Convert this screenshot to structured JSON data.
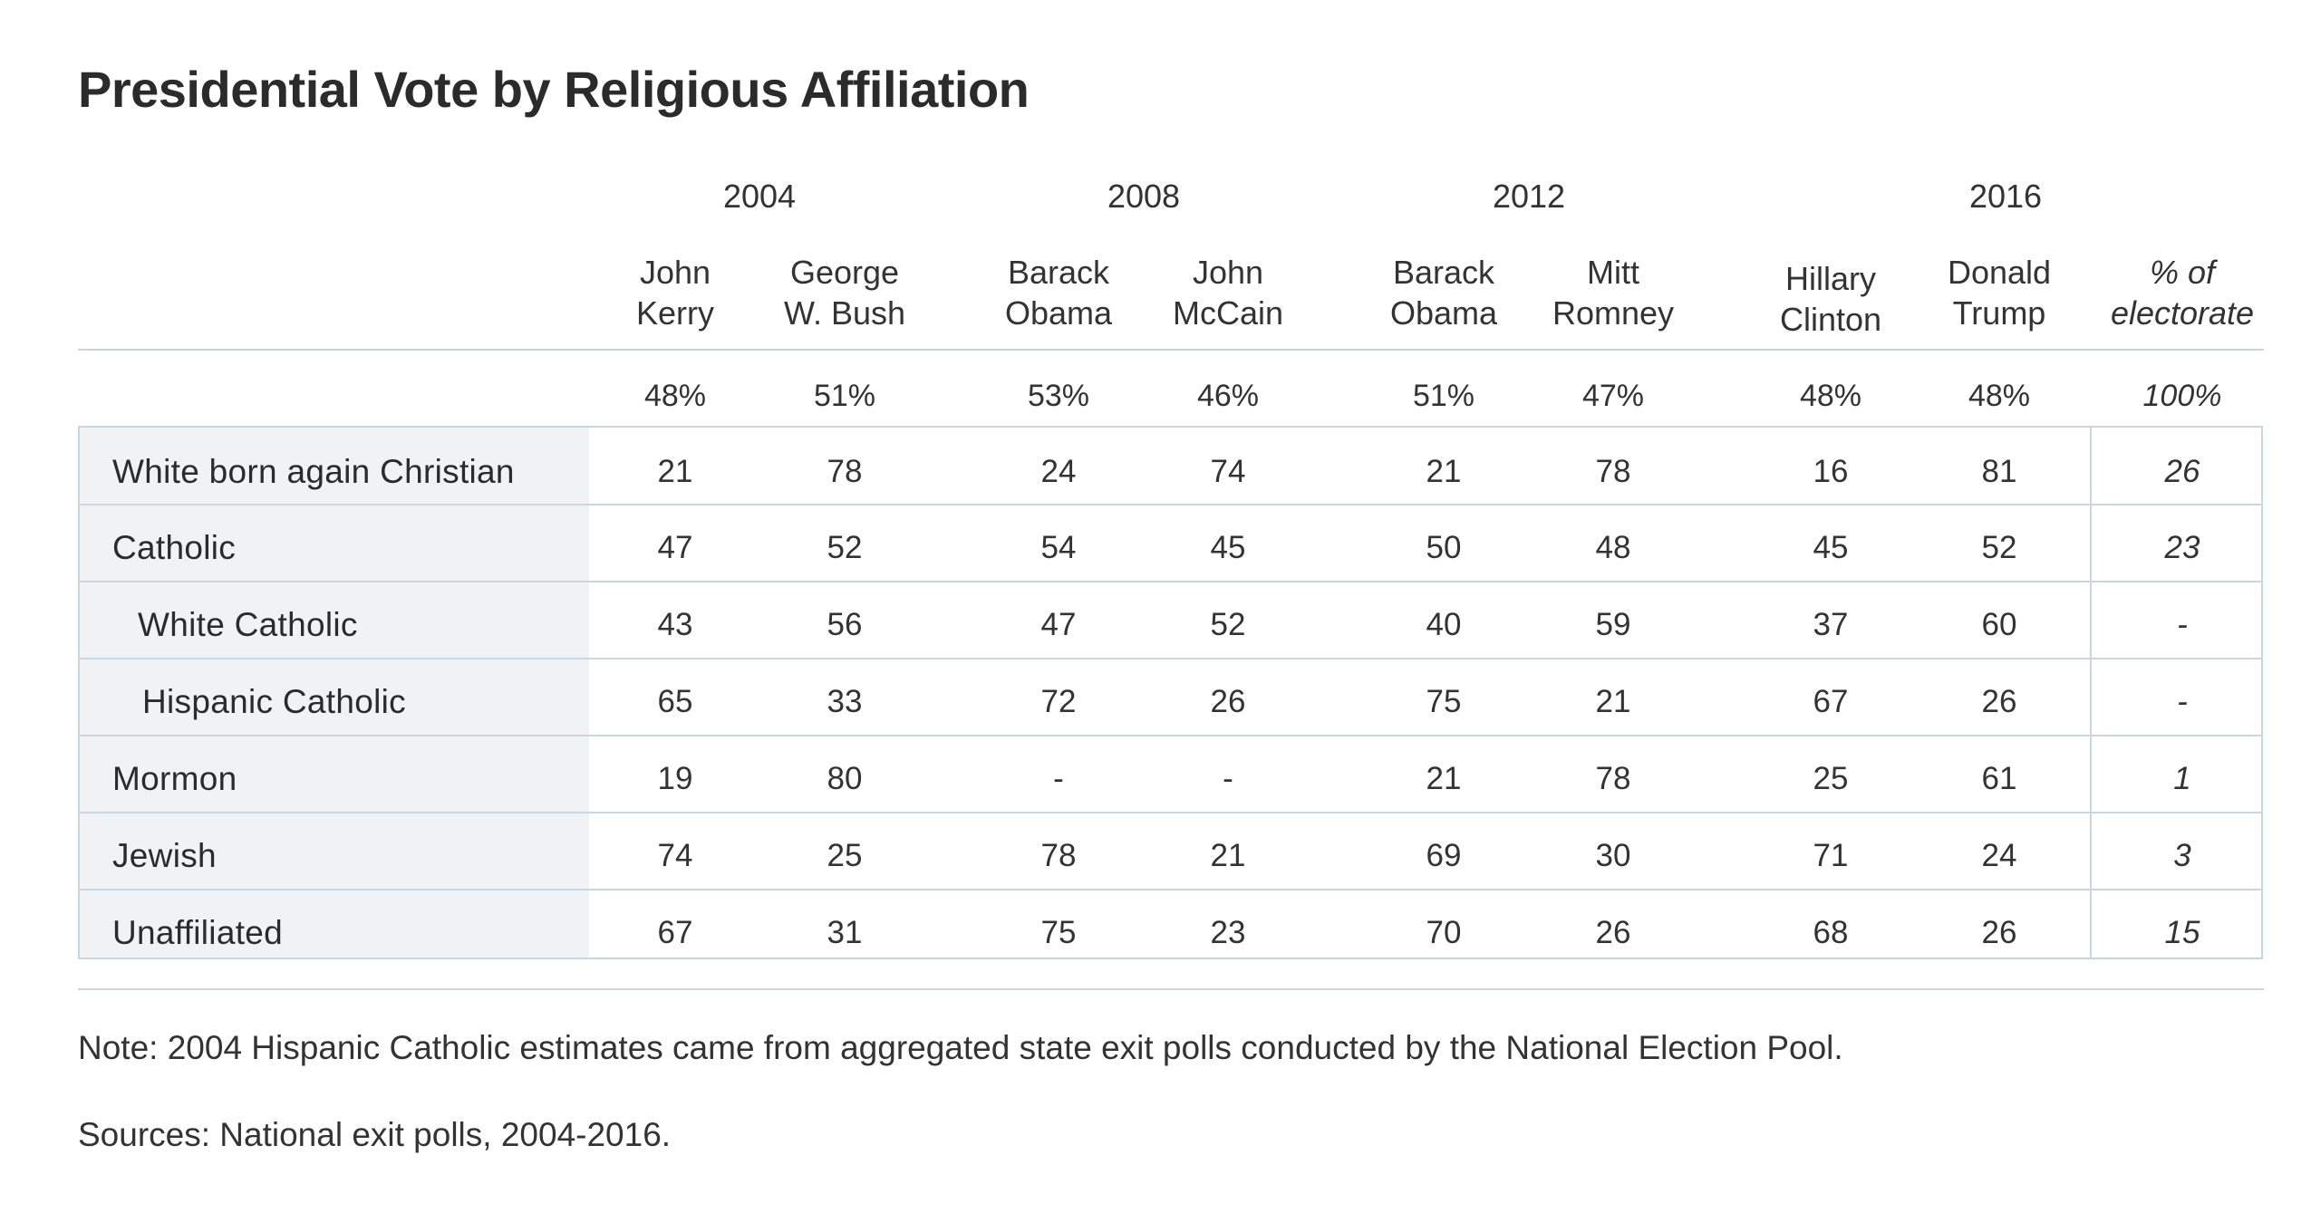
{
  "chart_data": {
    "type": "table",
    "title": "Presidential Vote by Religious Affiliation",
    "years": [
      "2004",
      "2008",
      "2012",
      "2016"
    ],
    "columns": [
      {
        "year": "2004",
        "line1": "John",
        "line2": "Kerry",
        "total": "48%"
      },
      {
        "year": "2004",
        "line1": "George",
        "line2": "W. Bush",
        "total": "51%"
      },
      {
        "year": "2008",
        "line1": "Barack",
        "line2": "Obama",
        "total": "53%"
      },
      {
        "year": "2008",
        "line1": "John",
        "line2": "McCain",
        "total": "46%"
      },
      {
        "year": "2012",
        "line1": "Barack",
        "line2": "Obama",
        "total": "51%"
      },
      {
        "year": "2012",
        "line1": "Mitt",
        "line2": "Romney",
        "total": "47%"
      },
      {
        "year": "2016",
        "line1": "Hillary",
        "line2": "Clinton",
        "total": "48%"
      },
      {
        "year": "2016",
        "line1": "Donald",
        "line2": "Trump",
        "total": "48%"
      }
    ],
    "share_column": {
      "line1": "% of",
      "line2": "electorate",
      "total": "100%"
    },
    "rows": [
      {
        "label": "White born again Christian",
        "values": [
          "21",
          "78",
          "24",
          "74",
          "21",
          "78",
          "16",
          "81"
        ],
        "share": "26"
      },
      {
        "label": "Catholic",
        "values": [
          "47",
          "52",
          "54",
          "45",
          "50",
          "48",
          "45",
          "52"
        ],
        "share": "23"
      },
      {
        "label": "White Catholic",
        "values": [
          "43",
          "56",
          "47",
          "52",
          "40",
          "59",
          "37",
          "60"
        ],
        "share": "-"
      },
      {
        "label": "Hispanic Catholic",
        "values": [
          "65",
          "33",
          "72",
          "26",
          "75",
          "21",
          "67",
          "26"
        ],
        "share": "-"
      },
      {
        "label": "Mormon",
        "values": [
          "19",
          "80",
          "-",
          "-",
          "21",
          "78",
          "25",
          "61"
        ],
        "share": "1"
      },
      {
        "label": "Jewish",
        "values": [
          "74",
          "25",
          "78",
          "21",
          "69",
          "30",
          "71",
          "24"
        ],
        "share": "3"
      },
      {
        "label": "Unaffiliated",
        "values": [
          "67",
          "31",
          "75",
          "23",
          "70",
          "26",
          "68",
          "26"
        ],
        "share": "15"
      }
    ]
  },
  "notes": {
    "note": "Note: 2004 Hispanic Catholic estimates came from aggregated state exit polls conducted by the National Election Pool.",
    "sources": "Sources: National exit polls, 2004-2016."
  },
  "colors": {
    "rule": "#c8d6e2",
    "label_background": "#f1f2f3",
    "text": "#333333"
  }
}
